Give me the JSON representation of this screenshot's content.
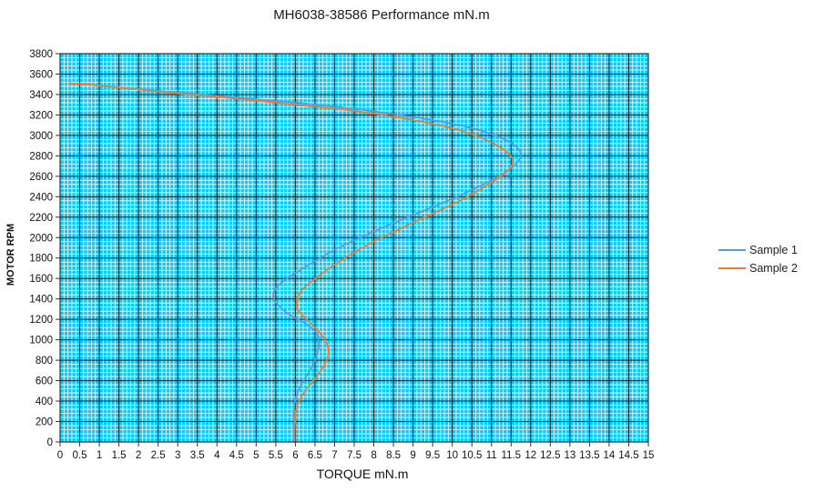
{
  "chart_data": {
    "type": "line",
    "title": "MH6038-38586   Performance mN.m",
    "xlabel": "TORQUE mN.m",
    "ylabel": "MOTOR RPM",
    "xlim": [
      0,
      15
    ],
    "ylim": [
      0,
      3800
    ],
    "x_ticks": [
      "0",
      "0.5",
      "1",
      "1.5",
      "2",
      "2.5",
      "3",
      "3.5",
      "4",
      "4.5",
      "5",
      "5.5",
      "6",
      "6.5",
      "7",
      "7.5",
      "8",
      "8.5",
      "9",
      "9.5",
      "10",
      "10.5",
      "11",
      "11.5",
      "12",
      "12.5",
      "13",
      "13.5",
      "14",
      "14.5",
      "15"
    ],
    "y_ticks": [
      "0",
      "200",
      "400",
      "600",
      "800",
      "1000",
      "1200",
      "1400",
      "1600",
      "1800",
      "2000",
      "2200",
      "2400",
      "2600",
      "2800",
      "3000",
      "3200",
      "3400",
      "3600",
      "3800"
    ],
    "grid": true,
    "background_color": "#00ccff",
    "legend_position": "right",
    "series": [
      {
        "name": "Sample 1",
        "color": "#5b9bd5",
        "points": [
          [
            0.25,
            3510
          ],
          [
            1.5,
            3470
          ],
          [
            3.0,
            3420
          ],
          [
            4.5,
            3370
          ],
          [
            6.0,
            3320
          ],
          [
            7.5,
            3260
          ],
          [
            9.0,
            3180
          ],
          [
            10.3,
            3090
          ],
          [
            11.1,
            3000
          ],
          [
            11.6,
            2900
          ],
          [
            11.75,
            2800
          ],
          [
            11.5,
            2680
          ],
          [
            10.9,
            2540
          ],
          [
            10.0,
            2380
          ],
          [
            9.0,
            2220
          ],
          [
            8.0,
            2060
          ],
          [
            7.0,
            1880
          ],
          [
            6.2,
            1700
          ],
          [
            5.65,
            1560
          ],
          [
            5.45,
            1460
          ],
          [
            5.5,
            1370
          ],
          [
            5.8,
            1260
          ],
          [
            6.25,
            1160
          ],
          [
            6.55,
            1060
          ],
          [
            6.6,
            960
          ],
          [
            6.55,
            860
          ],
          [
            6.4,
            720
          ],
          [
            6.15,
            560
          ],
          [
            6.0,
            420
          ],
          [
            5.97,
            300
          ],
          [
            5.97,
            150
          ],
          [
            5.97,
            0
          ]
        ]
      },
      {
        "name": "Sample 2",
        "color": "#ed7d31",
        "points": [
          [
            0.25,
            3510
          ],
          [
            1.5,
            3470
          ],
          [
            3.0,
            3410
          ],
          [
            4.5,
            3360
          ],
          [
            6.0,
            3300
          ],
          [
            7.5,
            3240
          ],
          [
            9.0,
            3150
          ],
          [
            10.2,
            3050
          ],
          [
            10.9,
            2950
          ],
          [
            11.35,
            2850
          ],
          [
            11.55,
            2750
          ],
          [
            11.4,
            2650
          ],
          [
            11.0,
            2540
          ],
          [
            10.3,
            2380
          ],
          [
            9.3,
            2200
          ],
          [
            8.2,
            2000
          ],
          [
            7.3,
            1810
          ],
          [
            6.65,
            1640
          ],
          [
            6.2,
            1500
          ],
          [
            6.05,
            1400
          ],
          [
            6.05,
            1310
          ],
          [
            6.2,
            1230
          ],
          [
            6.5,
            1120
          ],
          [
            6.75,
            1000
          ],
          [
            6.85,
            880
          ],
          [
            6.75,
            760
          ],
          [
            6.5,
            620
          ],
          [
            6.25,
            500
          ],
          [
            6.05,
            360
          ],
          [
            6.0,
            250
          ],
          [
            5.98,
            120
          ],
          [
            5.98,
            0
          ]
        ]
      }
    ]
  }
}
